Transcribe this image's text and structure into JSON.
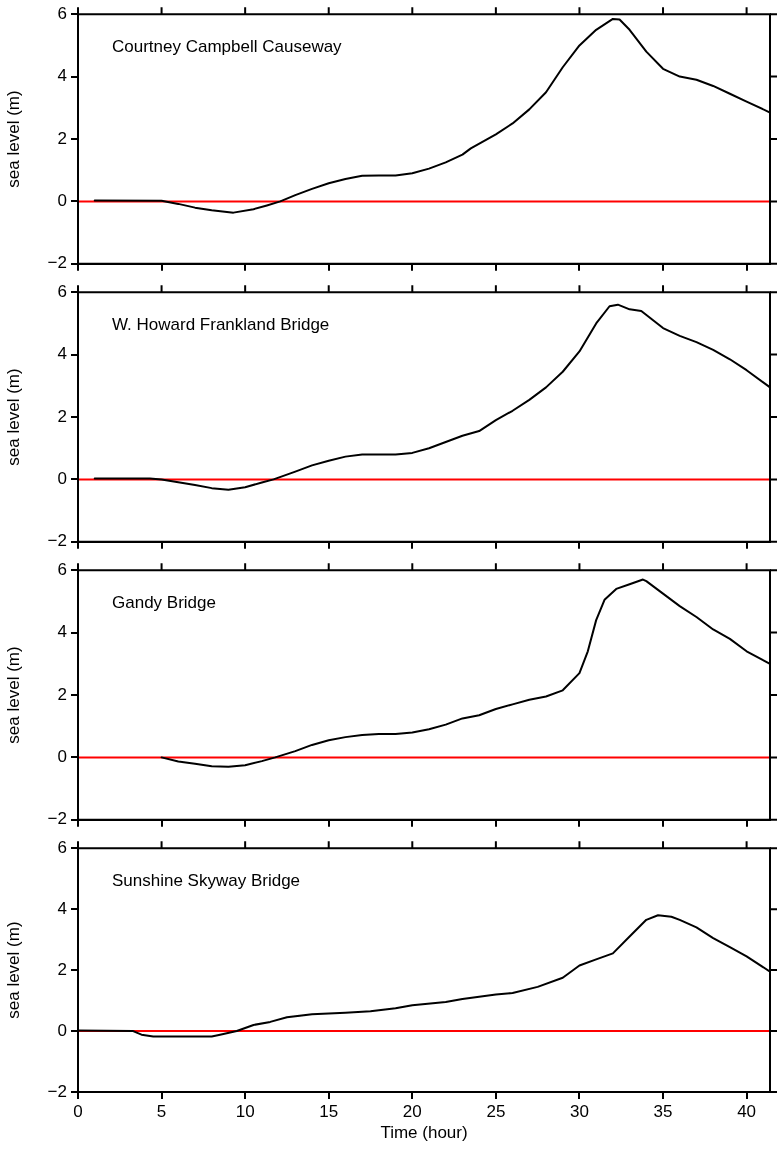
{
  "chart_data": [
    {
      "type": "line",
      "ylabel": "sea level (m)",
      "annotations": [
        "Courtney Campbell Causeway"
      ],
      "color": "#000000",
      "marker": "none",
      "grid": false,
      "legend": false,
      "tick_labels": "y",
      "x": [
        1,
        5,
        6,
        7,
        8,
        9.3,
        10.5,
        11.3,
        12.1,
        13,
        14,
        15,
        16,
        17,
        18,
        19,
        20,
        21,
        22,
        23,
        23.5,
        25,
        26,
        27,
        28,
        29,
        30,
        31,
        32,
        32.4,
        33,
        34,
        35,
        36,
        37,
        38,
        39,
        40,
        41.4
      ],
      "values": [
        0.03,
        0.02,
        -0.08,
        -0.2,
        -0.28,
        -0.36,
        -0.25,
        -0.13,
        0,
        0.2,
        0.4,
        0.58,
        0.72,
        0.82,
        0.83,
        0.83,
        0.9,
        1.05,
        1.25,
        1.5,
        1.7,
        2.15,
        2.5,
        2.95,
        3.5,
        4.3,
        5.0,
        5.5,
        5.85,
        5.83,
        5.5,
        4.8,
        4.25,
        4.0,
        3.9,
        3.7,
        3.45,
        3.2,
        2.85
      ],
      "xlim": [
        0,
        41.4
      ],
      "xticks": [
        0,
        5,
        10,
        15,
        20,
        25,
        30,
        35,
        40
      ],
      "ylim": [
        -2,
        6
      ],
      "yticks": [
        -2,
        0,
        2,
        4,
        6
      ],
      "ref_lines": [
        {
          "axis": "y",
          "value": 0,
          "color": "#ff0000"
        }
      ]
    },
    {
      "type": "line",
      "ylabel": "sea level (m)",
      "annotations": [
        "W. Howard Frankland Bridge"
      ],
      "color": "#000000",
      "marker": "none",
      "grid": false,
      "legend": false,
      "tick_labels": "y",
      "x": [
        1,
        4.3,
        5,
        7,
        8,
        9,
        10,
        11,
        11.7,
        13,
        14,
        15,
        16,
        17,
        19,
        20,
        21,
        22,
        23,
        24,
        25,
        26,
        27,
        28,
        29,
        30,
        31,
        31.8,
        32.3,
        33,
        33.7,
        35,
        36,
        37,
        38,
        39,
        40,
        41.4
      ],
      "values": [
        0.03,
        0.03,
        0,
        -0.18,
        -0.28,
        -0.33,
        -0.25,
        -0.1,
        0,
        0.25,
        0.45,
        0.6,
        0.73,
        0.8,
        0.8,
        0.85,
        1.0,
        1.2,
        1.4,
        1.55,
        1.9,
        2.2,
        2.55,
        2.95,
        3.45,
        4.1,
        5.0,
        5.55,
        5.6,
        5.45,
        5.4,
        4.85,
        4.6,
        4.4,
        4.15,
        3.85,
        3.5,
        2.95
      ],
      "xlim": [
        0,
        41.4
      ],
      "xticks": [
        0,
        5,
        10,
        15,
        20,
        25,
        30,
        35,
        40
      ],
      "ylim": [
        -2,
        6
      ],
      "yticks": [
        -2,
        0,
        2,
        4,
        6
      ],
      "ref_lines": [
        {
          "axis": "y",
          "value": 0,
          "color": "#ff0000"
        }
      ]
    },
    {
      "type": "line",
      "ylabel": "sea level (m)",
      "annotations": [
        "Gandy Bridge"
      ],
      "color": "#000000",
      "marker": "none",
      "grid": false,
      "legend": false,
      "tick_labels": "y",
      "x": [
        5,
        6,
        7,
        8,
        9,
        10,
        11,
        11.8,
        13,
        14,
        15,
        16,
        17,
        18,
        19,
        20,
        21,
        22,
        23,
        24,
        25,
        26,
        27,
        28,
        29,
        30,
        30.5,
        31,
        31.5,
        32.2,
        33,
        33.8,
        34,
        35,
        36,
        37,
        38,
        39,
        40,
        41.4
      ],
      "values": [
        0,
        -0.13,
        -0.2,
        -0.28,
        -0.3,
        -0.25,
        -0.12,
        0,
        0.2,
        0.4,
        0.55,
        0.65,
        0.72,
        0.75,
        0.75,
        0.8,
        0.9,
        1.05,
        1.25,
        1.35,
        1.55,
        1.7,
        1.85,
        1.95,
        2.15,
        2.7,
        3.4,
        4.4,
        5.05,
        5.4,
        5.55,
        5.7,
        5.65,
        5.25,
        4.85,
        4.5,
        4.1,
        3.8,
        3.4,
        3.0
      ],
      "xlim": [
        0,
        41.4
      ],
      "xticks": [
        0,
        5,
        10,
        15,
        20,
        25,
        30,
        35,
        40
      ],
      "ylim": [
        -2,
        6
      ],
      "yticks": [
        -2,
        0,
        2,
        4,
        6
      ],
      "ref_lines": [
        {
          "axis": "y",
          "value": 0,
          "color": "#ff0000"
        }
      ]
    },
    {
      "type": "line",
      "xlabel": "Time (hour)",
      "ylabel": "sea level (m)",
      "annotations": [
        "Sunshine Skyway Bridge"
      ],
      "color": "#000000",
      "marker": "none",
      "grid": false,
      "legend": false,
      "x": [
        0,
        3.3,
        3.8,
        4.5,
        8,
        8.5,
        9.5,
        10.5,
        11.5,
        12.5,
        14,
        16,
        17.5,
        19,
        20,
        22,
        23,
        25,
        26,
        27.5,
        29,
        30,
        31,
        32,
        33,
        34,
        34.7,
        35.5,
        36,
        37,
        38,
        39,
        40,
        41.4
      ],
      "values": [
        0.02,
        0,
        -0.12,
        -0.18,
        -0.18,
        -0.12,
        0,
        0.2,
        0.3,
        0.45,
        0.55,
        0.6,
        0.65,
        0.75,
        0.85,
        0.95,
        1.05,
        1.2,
        1.25,
        1.45,
        1.75,
        2.15,
        2.35,
        2.55,
        3.1,
        3.65,
        3.8,
        3.75,
        3.65,
        3.4,
        3.05,
        2.75,
        2.45,
        1.95
      ],
      "xlim": [
        0,
        41.4
      ],
      "xticks": [
        0,
        5,
        10,
        15,
        20,
        25,
        30,
        35,
        40
      ],
      "ylim": [
        -2,
        6
      ],
      "yticks": [
        -2,
        0,
        2,
        4,
        6
      ],
      "ref_lines": [
        {
          "axis": "y",
          "value": 0,
          "color": "#ff0000"
        }
      ]
    }
  ]
}
